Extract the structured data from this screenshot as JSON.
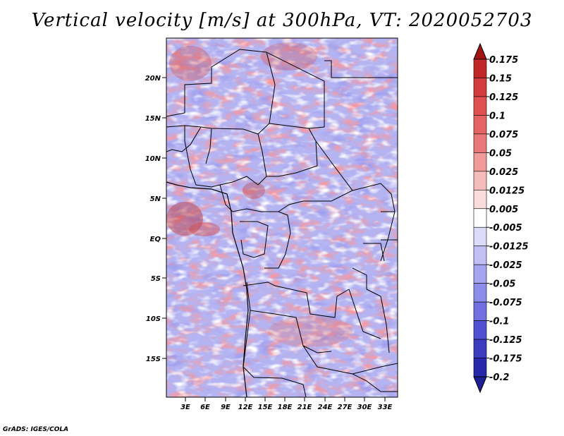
{
  "title": "Vertical velocity [m/s] at 300hPa, VT: 2020052703",
  "credit": "GrADS: IGES/COLA",
  "map": {
    "lat_labels": [
      "20N",
      "15N",
      "10N",
      "5N",
      "EQ",
      "5S",
      "10S",
      "15S"
    ],
    "lon_labels": [
      "3E",
      "6E",
      "9E",
      "12E",
      "15E",
      "18E",
      "21E",
      "24E",
      "27E",
      "30E",
      "33E"
    ]
  },
  "colorbar": {
    "labels": [
      "0.175",
      "0.15",
      "0.125",
      "0.1",
      "0.075",
      "0.05",
      "0.025",
      "0.0125",
      "0.005",
      "-0.005",
      "-0.0125",
      "-0.025",
      "-0.05",
      "-0.075",
      "-0.1",
      "-0.125",
      "-0.175",
      "-0.2"
    ],
    "colors": [
      "#a01414",
      "#c02828",
      "#d23c3c",
      "#e05050",
      "#e46464",
      "#ea7878",
      "#f09a9a",
      "#f6bcbc",
      "#fadcdc",
      "#ffffff",
      "#dcdcfa",
      "#c0c0f6",
      "#a4a4f0",
      "#8c8cea",
      "#7070e0",
      "#5050d2",
      "#3c3cbe",
      "#2828aa",
      "#1e1e96"
    ]
  }
}
